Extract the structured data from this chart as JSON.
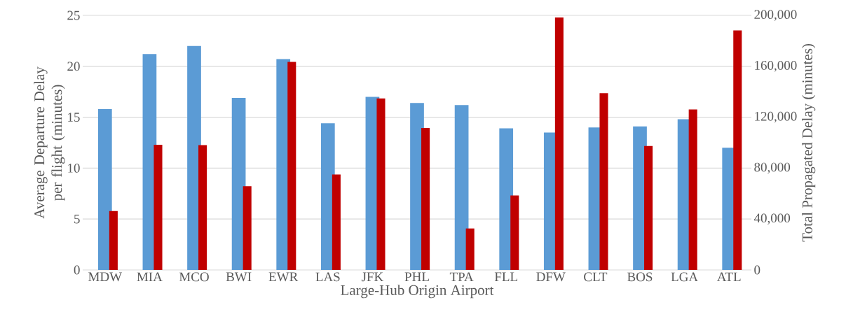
{
  "chart_data": {
    "type": "bar",
    "xlabel": "Large-Hub Origin Airport",
    "ylabel": "Average Departure Delay per flight (minutes)",
    "y2label": "Total Propagated Delay (minutes)",
    "categories": [
      "MDW",
      "MIA",
      "MCO",
      "BWI",
      "EWR",
      "LAS",
      "JFK",
      "PHL",
      "TPA",
      "FLL",
      "DFW",
      "CLT",
      "BOS",
      "LGA",
      "ATL"
    ],
    "series": [
      {
        "color": "#5b9bd5",
        "values": [
          15.8,
          21.2,
          22.0,
          16.9,
          20.7,
          14.4,
          17.0,
          16.4,
          16.2,
          13.9,
          13.5,
          14.0,
          14.1,
          14.8,
          12.0
        ]
      },
      {
        "color": "#c00000",
        "axis": "y2",
        "values": [
          46300,
          98300,
          98100,
          65800,
          163500,
          75000,
          134700,
          111500,
          32600,
          58500,
          198400,
          138900,
          97400,
          126100,
          188200
        ]
      }
    ],
    "ylim": [
      0,
      25
    ],
    "yticks": [
      0,
      5,
      10,
      15,
      20,
      25
    ],
    "y2lim": [
      0,
      200000
    ],
    "y2ticks": [
      0,
      {
        "value": 40000,
        "label": "40,000"
      },
      {
        "value": 80000,
        "label": "80,000"
      },
      {
        "value": 120000,
        "label": "120,000"
      },
      {
        "value": 160000,
        "label": "160,000"
      },
      {
        "value": 200000,
        "label": "200,000"
      }
    ],
    "grid": "y"
  }
}
